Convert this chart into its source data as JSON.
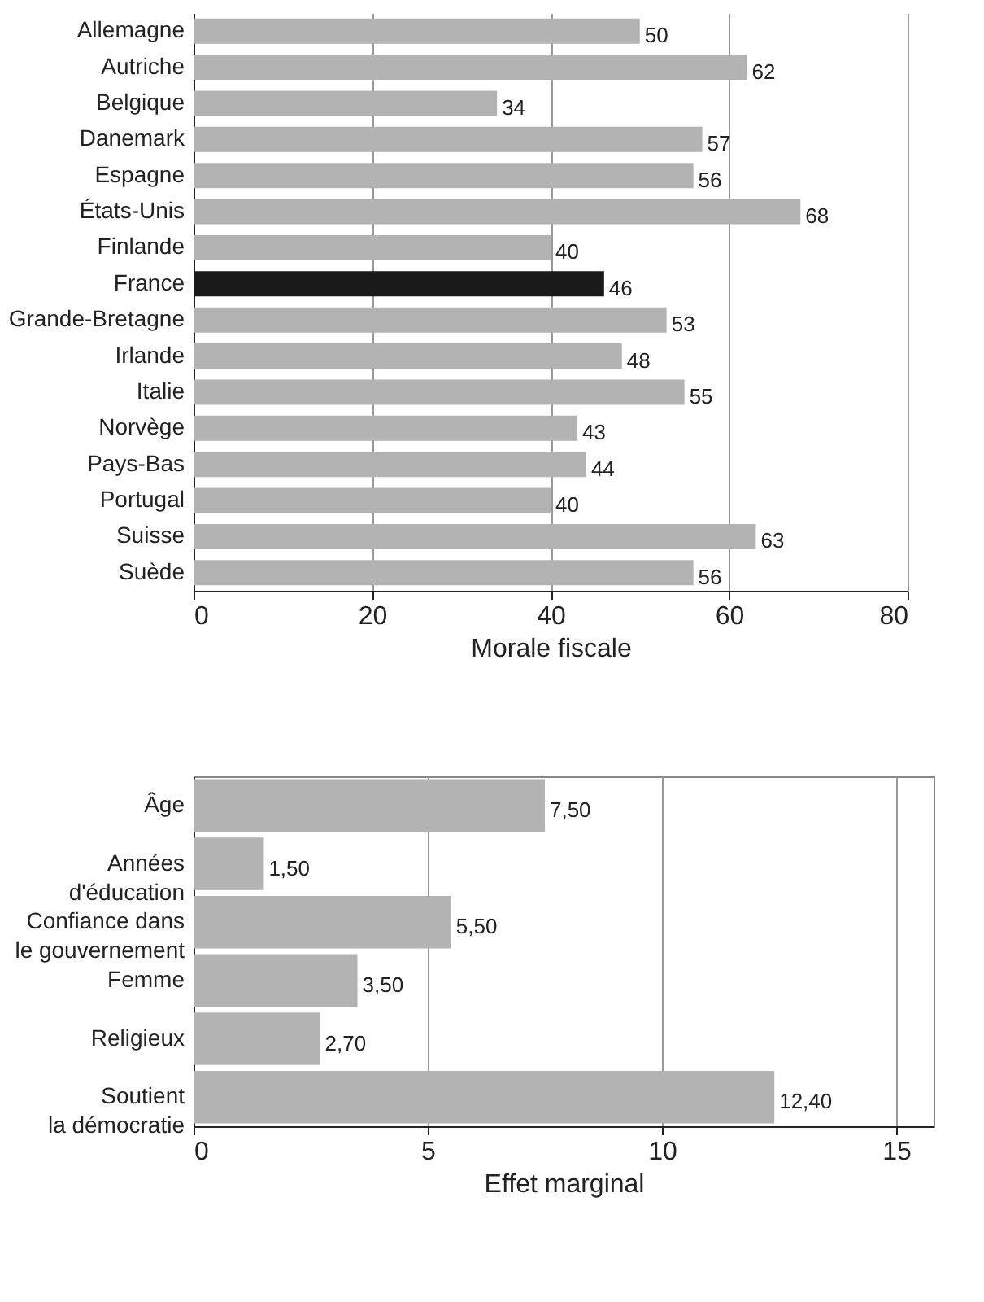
{
  "chart_data": [
    {
      "type": "bar",
      "orientation": "horizontal",
      "xlabel": "Morale fiscale",
      "categories": [
        "Allemagne",
        "Autriche",
        "Belgique",
        "Danemark",
        "Espagne",
        "États-Unis",
        "Finlande",
        "France",
        "Grande-Bretagne",
        "Irlande",
        "Italie",
        "Norvège",
        "Pays-Bas",
        "Portugal",
        "Suisse",
        "Suède"
      ],
      "values": [
        50,
        62,
        34,
        57,
        56,
        68,
        40,
        46,
        53,
        48,
        55,
        43,
        44,
        40,
        63,
        56
      ],
      "colors": [
        "#b3b3b3",
        "#b3b3b3",
        "#b3b3b3",
        "#b3b3b3",
        "#b3b3b3",
        "#b3b3b3",
        "#b3b3b3",
        "#1a1a1a",
        "#b3b3b3",
        "#b3b3b3",
        "#b3b3b3",
        "#b3b3b3",
        "#b3b3b3",
        "#b3b3b3",
        "#b3b3b3",
        "#b3b3b3"
      ],
      "xlim": [
        0,
        80
      ],
      "xticks": [
        0,
        20,
        40,
        60,
        80
      ],
      "grid": "x",
      "data_labels": true
    },
    {
      "type": "bar",
      "orientation": "horizontal",
      "xlabel": "Effet marginal",
      "categories": [
        "Âge",
        "Années\nd'éducation",
        "Confiance dans\nle gouvernement",
        "Femme",
        "Religieux",
        "Soutient\nla démocratie"
      ],
      "values": [
        7.5,
        1.5,
        5.5,
        3.5,
        2.7,
        12.4
      ],
      "value_labels": [
        "7,50",
        "1,50",
        "5,50",
        "3,50",
        "2,70",
        "12,40"
      ],
      "colors": [
        "#b3b3b3",
        "#b3b3b3",
        "#b3b3b3",
        "#b3b3b3",
        "#b3b3b3",
        "#b3b3b3"
      ],
      "xlim": [
        0,
        15.8
      ],
      "xticks": [
        0,
        5,
        10,
        15
      ],
      "grid": "x"
    }
  ]
}
